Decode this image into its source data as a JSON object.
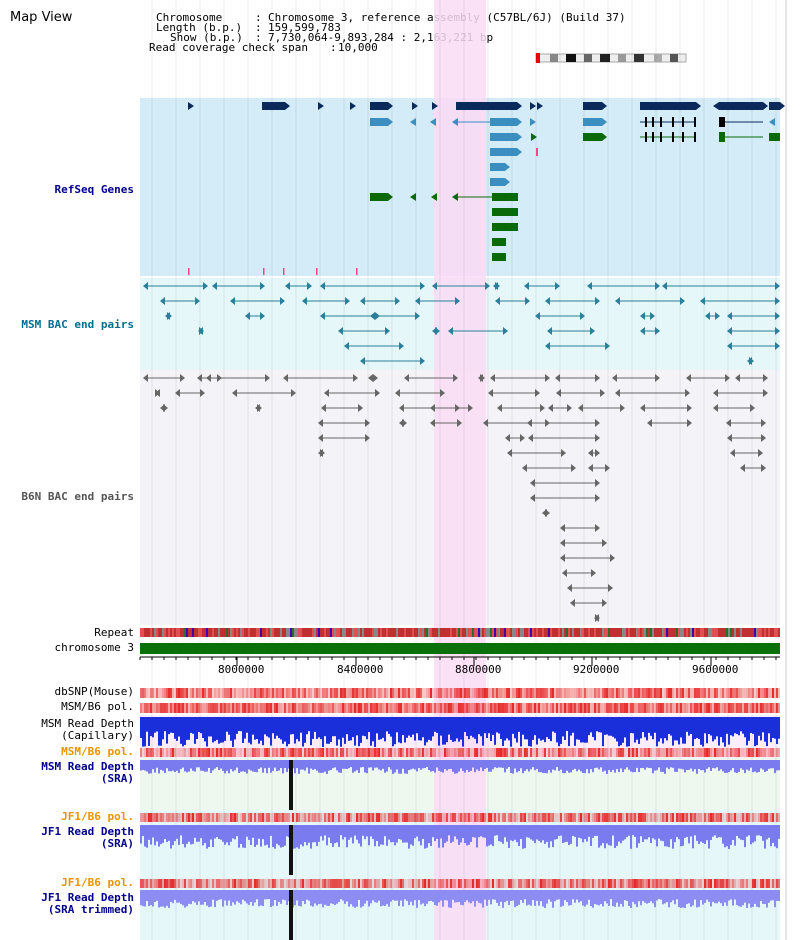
{
  "map_title": "Map View",
  "info": {
    "chromosome_key": "Chromosome",
    "chromosome_value": "Chromosome 3, reference assembly (C57BL/6J) (Build 37)",
    "length_key": "Length (b.p.)",
    "length_value": "159,599,783",
    "show_key": "Show (b.p.)",
    "show_value": "7,730,064-9,893,284 : 2,163,221 bp",
    "coverage_key": "Read coverage check span",
    "coverage_value": "10,000"
  },
  "tracks": {
    "refseq": "RefSeq Genes",
    "msm_bac": "MSM BAC end pairs",
    "b6n_bac": "B6N BAC end pairs",
    "repeat": "Repeat",
    "chromosome": "chromosome 3",
    "dbsnp": "dbSNP(Mouse)",
    "msm_b6_pol_1": "MSM/B6 pol.",
    "msm_read_depth_cap": "MSM Read Depth\n(Capillary)",
    "msm_b6_pol_2": "MSM/B6 pol.",
    "msm_read_depth_sra": "MSM Read Depth\n(SRA)",
    "jf1_b6_pol_1": "JF1/B6 pol.",
    "jf1_read_depth_sra": "JF1 Read Depth\n(SRA)",
    "jf1_b6_pol_2": "JF1/B6 pol.",
    "jf1_read_depth_trim": "JF1 Read Depth\n(SRA trimmed)"
  },
  "axis_ticks": [
    "8000000",
    "8400000",
    "8800000",
    "9200000",
    "9600000"
  ],
  "colors": {
    "link_blue": "#00008b",
    "orange": "#e69500",
    "highlight": "#fadcf5",
    "refseq_bg": "#d4ecf7",
    "gene_dark": "#0a2a5c",
    "gene_mid": "#3a8fc0",
    "gene_green": "#0a6a0a"
  }
}
